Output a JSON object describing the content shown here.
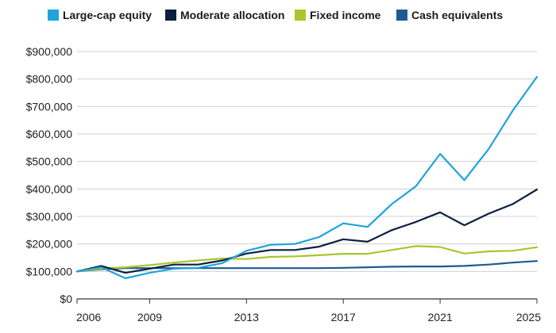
{
  "chart_data": {
    "type": "line",
    "x": [
      2006,
      2007,
      2008,
      2009,
      2010,
      2011,
      2012,
      2013,
      2014,
      2015,
      2016,
      2017,
      2018,
      2019,
      2020,
      2021,
      2022,
      2023,
      2024,
      2025
    ],
    "x_ticks": [
      2006,
      2009,
      2013,
      2017,
      2021,
      2025
    ],
    "ylim": [
      0,
      900000
    ],
    "y_ticks": [
      0,
      100000,
      200000,
      300000,
      400000,
      500000,
      600000,
      700000,
      800000,
      900000
    ],
    "y_tick_labels": [
      "$0",
      "$100,000",
      "$200,000",
      "$300,000",
      "$400,000",
      "$500,000",
      "$600,000",
      "$700,000",
      "$800,000",
      "$900,000"
    ],
    "grid": "horizontal",
    "legend_position": "top",
    "series": [
      {
        "name": "Large-cap equity",
        "color": "#1fa3dc",
        "values": [
          100000,
          115000,
          75000,
          95000,
          110000,
          113000,
          130000,
          175000,
          197000,
          200000,
          225000,
          275000,
          262000,
          345000,
          410000,
          528000,
          432000,
          545000,
          685000,
          808000
        ]
      },
      {
        "name": "Moderate allocation",
        "color": "#0c1f3f",
        "values": [
          100000,
          120000,
          95000,
          110000,
          125000,
          125000,
          140000,
          165000,
          178000,
          178000,
          190000,
          217000,
          208000,
          250000,
          280000,
          315000,
          268000,
          310000,
          345000,
          398000
        ]
      },
      {
        "name": "Fixed income",
        "color": "#a8c62d",
        "values": [
          100000,
          110000,
          115000,
          123000,
          132000,
          140000,
          147000,
          145000,
          153000,
          155000,
          159000,
          164000,
          164000,
          178000,
          192000,
          189000,
          165000,
          173000,
          175000,
          188000
        ]
      },
      {
        "name": "Cash equivalents",
        "color": "#1c5a93",
        "values": [
          100000,
          108000,
          112000,
          112000,
          112000,
          112000,
          112000,
          112000,
          112000,
          112000,
          112000,
          113000,
          115000,
          117000,
          118000,
          118000,
          120000,
          125000,
          132000,
          138000
        ]
      }
    ]
  }
}
